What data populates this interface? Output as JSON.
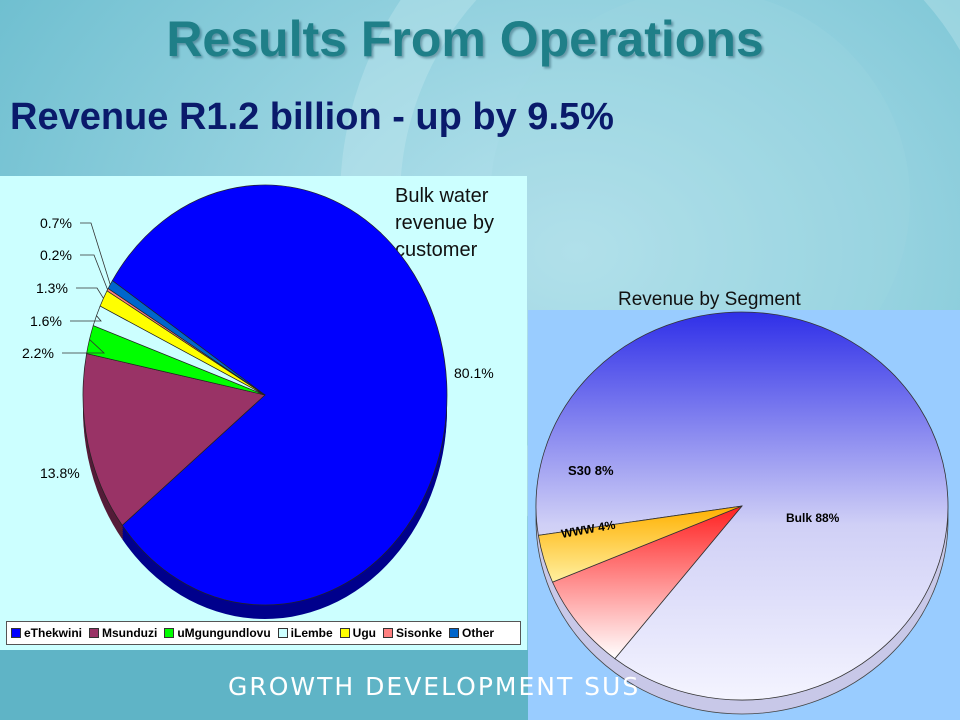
{
  "slide": {
    "title": "Results From Operations",
    "subtitle": "Revenue R1.2 billion - up by 9.5%",
    "footer": "GROWTH DEVELOPMENT SUS"
  },
  "chart_data": [
    {
      "type": "pie",
      "title": "Bulk water revenue by customer",
      "slices": [
        {
          "name": "eThekwini",
          "value": 80.1,
          "label": "80.1%",
          "color": "#0000ff"
        },
        {
          "name": "Msunduzi",
          "value": 13.8,
          "label": "13.8%",
          "color": "#993366"
        },
        {
          "name": "uMgungundlovu",
          "value": 2.2,
          "label": "2.2%",
          "color": "#00ff00"
        },
        {
          "name": "iLembe",
          "value": 1.6,
          "label": "1.6%",
          "color": "#ccffff"
        },
        {
          "name": "Ugu",
          "value": 1.3,
          "label": "1.3%",
          "color": "#ffff00"
        },
        {
          "name": "Sisonke",
          "value": 0.2,
          "label": "0.2%",
          "color": "#ff8080"
        },
        {
          "name": "Other",
          "value": 0.7,
          "label": "0.7%",
          "color": "#0066cc"
        }
      ],
      "legend": "bottom"
    },
    {
      "type": "pie",
      "title": "Revenue by Segment",
      "slices": [
        {
          "name": "Bulk",
          "value": 88,
          "label": "Bulk 88%",
          "color": "#ffffff"
        },
        {
          "name": "S30",
          "value": 8,
          "label": "S30 8%",
          "color": "#ff3333"
        },
        {
          "name": "WWW",
          "value": 4,
          "label": "WWW 4%",
          "color": "#ffcc00"
        }
      ]
    }
  ]
}
